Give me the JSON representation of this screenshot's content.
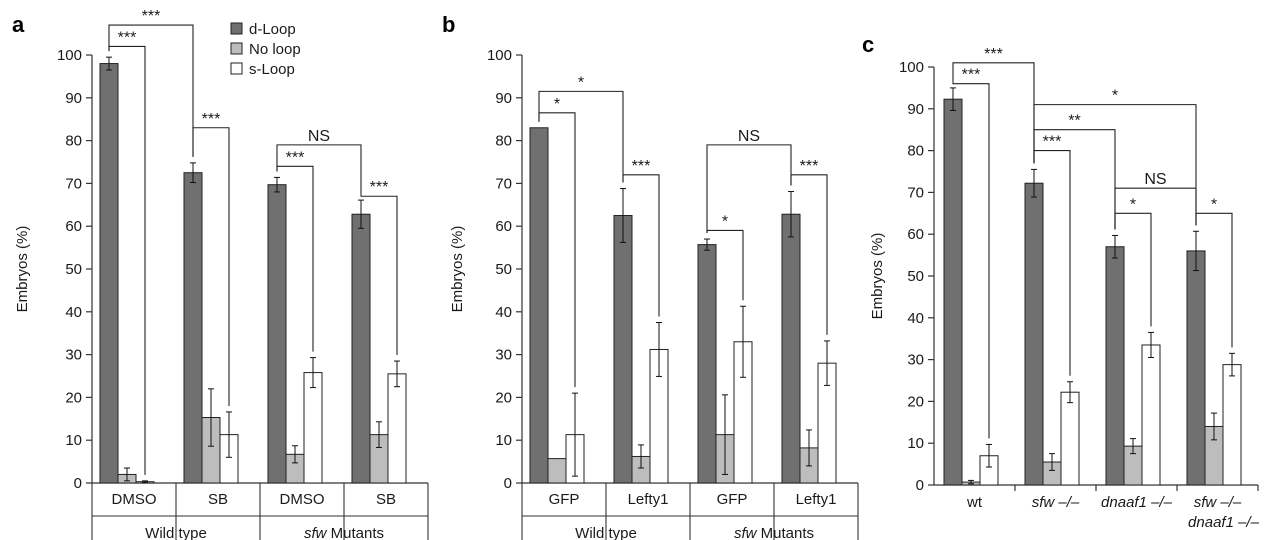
{
  "colors": {
    "d_loop": "#707070",
    "no_loop": "#bdbdbd",
    "s_loop": "#ffffff",
    "axis": "#333333"
  },
  "legend": [
    {
      "label": "d-Loop",
      "color": "#707070"
    },
    {
      "label": "No loop",
      "color": "#bdbdbd"
    },
    {
      "label": "s-Loop",
      "color": "#ffffff"
    }
  ],
  "chart_data": [
    {
      "panel": "a",
      "type": "bar",
      "ylabel": "Embryos (%)",
      "ylim": [
        0,
        100
      ],
      "yticks": [
        "0",
        "10",
        "20",
        "30",
        "40",
        "50",
        "60",
        "70",
        "80",
        "90",
        "100"
      ],
      "categories": [
        "DMSO",
        "SB",
        "DMSO",
        "SB"
      ],
      "groups": [
        {
          "label": "Wild type",
          "italic": "",
          "from": 0,
          "to": 1
        },
        {
          "label": " Mutants",
          "italic": "sfw",
          "from": 2,
          "to": 3
        }
      ],
      "series": [
        {
          "name": "d-Loop",
          "values": [
            98,
            72.5,
            69.7,
            62.8
          ],
          "err": [
            1.5,
            2.3,
            1.7,
            3.3
          ]
        },
        {
          "name": "No loop",
          "values": [
            2,
            15.3,
            6.7,
            11.3
          ],
          "err": [
            1.5,
            6.7,
            2,
            3
          ]
        },
        {
          "name": "s-Loop",
          "values": [
            0.3,
            11.3,
            25.8,
            25.5
          ],
          "err": [
            0.2,
            5.3,
            3.5,
            3
          ]
        }
      ],
      "significance": [
        {
          "text": "***",
          "from": [
            0,
            0
          ],
          "to": [
            0,
            2
          ],
          "level": 102
        },
        {
          "text": "***",
          "from": [
            0,
            0
          ],
          "to": [
            1,
            0
          ],
          "level": 107
        },
        {
          "text": "***",
          "from": [
            1,
            0
          ],
          "to": [
            1,
            2
          ],
          "level": 83
        },
        {
          "text": "NS",
          "from": [
            2,
            0
          ],
          "to": [
            3,
            0
          ],
          "level": 79
        },
        {
          "text": "***",
          "from": [
            2,
            0
          ],
          "to": [
            2,
            2
          ],
          "level": 74
        },
        {
          "text": "***",
          "from": [
            3,
            0
          ],
          "to": [
            3,
            2
          ],
          "level": 67
        }
      ]
    },
    {
      "panel": "b",
      "type": "bar",
      "ylabel": "Embryos (%)",
      "ylim": [
        0,
        100
      ],
      "yticks": [
        "0",
        "10",
        "20",
        "30",
        "40",
        "50",
        "60",
        "70",
        "80",
        "90",
        "100"
      ],
      "categories": [
        "GFP",
        "Lefty1",
        "GFP",
        "Lefty1"
      ],
      "groups": [
        {
          "label": "Wild type",
          "italic": "",
          "from": 0,
          "to": 1
        },
        {
          "label": " Mutants",
          "italic": "sfw",
          "from": 2,
          "to": 3
        }
      ],
      "series": [
        {
          "name": "d-Loop",
          "values": [
            83,
            62.5,
            55.7,
            62.8
          ],
          "err": [
            0,
            6.3,
            1.3,
            5.3
          ]
        },
        {
          "name": "No loop",
          "values": [
            5.7,
            6.2,
            11.3,
            8.2
          ],
          "err": [
            0,
            2.7,
            9.3,
            4.2
          ]
        },
        {
          "name": "s-Loop",
          "values": [
            11.3,
            31.2,
            33,
            28
          ],
          "err": [
            9.7,
            6.3,
            8.3,
            5.2
          ]
        }
      ],
      "significance": [
        {
          "text": "*",
          "from": [
            0,
            0
          ],
          "to": [
            0,
            2
          ],
          "level": 86.5
        },
        {
          "text": "*",
          "from": [
            0,
            0
          ],
          "to": [
            1,
            0
          ],
          "level": 91.5
        },
        {
          "text": "***",
          "from": [
            1,
            0
          ],
          "to": [
            1,
            2
          ],
          "level": 72
        },
        {
          "text": "NS",
          "from": [
            2,
            0
          ],
          "to": [
            3,
            0
          ],
          "level": 79
        },
        {
          "text": "*",
          "from": [
            2,
            0
          ],
          "to": [
            2,
            2
          ],
          "level": 59
        },
        {
          "text": "***",
          "from": [
            3,
            0
          ],
          "to": [
            3,
            2
          ],
          "level": 72
        }
      ]
    },
    {
      "panel": "c",
      "type": "bar",
      "ylabel": "Embryos (%)",
      "ylim": [
        0,
        100
      ],
      "yticks": [
        "0",
        "10",
        "20",
        "30",
        "40",
        "50",
        "60",
        "70",
        "80",
        "90",
        "100"
      ],
      "categories": [
        {
          "line1": "wt",
          "line1_italic": false,
          "line2": ""
        },
        {
          "line1": "sfw –/–",
          "line1_italic": true,
          "line2": ""
        },
        {
          "line1": "dnaaf1 –/–",
          "line1_italic": true,
          "line2": ""
        },
        {
          "line1": "sfw –/–",
          "line1_italic": true,
          "line2": "dnaaf1 –/–"
        }
      ],
      "groups": [],
      "series": [
        {
          "name": "d-Loop",
          "values": [
            92.3,
            72.2,
            57,
            56
          ],
          "err": [
            2.7,
            3.3,
            2.7,
            4.7
          ]
        },
        {
          "name": "No loop",
          "values": [
            0.7,
            5.5,
            9.3,
            14
          ],
          "err": [
            0.4,
            2,
            1.8,
            3.2
          ]
        },
        {
          "name": "s-Loop",
          "values": [
            7,
            22.2,
            33.5,
            28.8
          ],
          "err": [
            2.7,
            2.5,
            3,
            2.7
          ]
        }
      ],
      "significance": [
        {
          "text": "***",
          "from": [
            0,
            0
          ],
          "to": [
            0,
            2
          ],
          "level": 96
        },
        {
          "text": "***",
          "from": [
            0,
            0
          ],
          "to": [
            1,
            0
          ],
          "level": 101
        },
        {
          "text": "***",
          "from": [
            1,
            0
          ],
          "to": [
            1,
            2
          ],
          "level": 80
        },
        {
          "text": "**",
          "from": [
            1,
            0
          ],
          "to": [
            2,
            0
          ],
          "level": 85
        },
        {
          "text": "*",
          "from": [
            1,
            0
          ],
          "to": [
            3,
            0
          ],
          "level": 91
        },
        {
          "text": "NS",
          "from": [
            2,
            0
          ],
          "to": [
            3,
            0
          ],
          "level": 71
        },
        {
          "text": "*",
          "from": [
            2,
            0
          ],
          "to": [
            2,
            2
          ],
          "level": 65
        },
        {
          "text": "*",
          "from": [
            3,
            0
          ],
          "to": [
            3,
            2
          ],
          "level": 65
        }
      ]
    }
  ]
}
